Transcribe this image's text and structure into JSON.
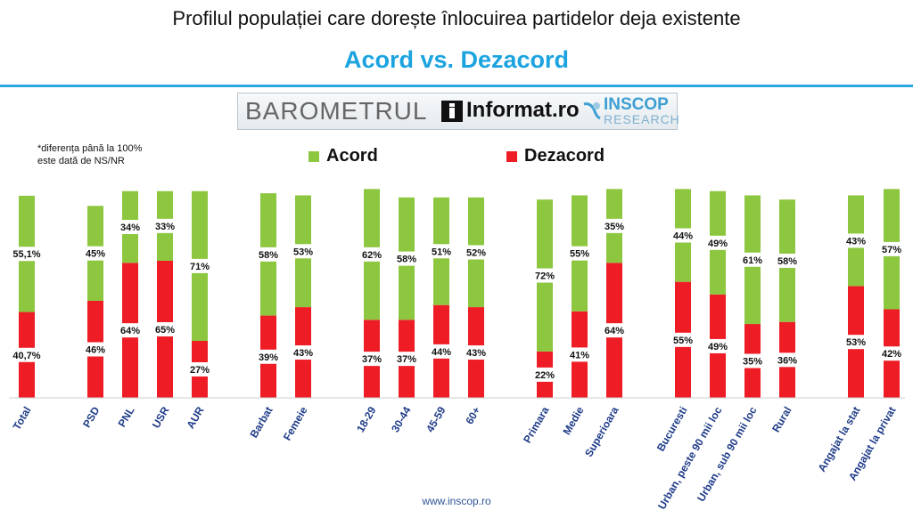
{
  "title": "Profilul populației care dorește înlocuirea partidelor deja existente",
  "subtitle": "Acord vs. Dezacord",
  "logo": {
    "barometrul": "BAROMETRUL",
    "informat": "Informat.ro",
    "inscop": "INSCOP",
    "research": "RESEARCH"
  },
  "footnote": [
    "*diferența până la 100%",
    "este dată de NS/NR"
  ],
  "footer": "www.inscop.ro",
  "colors": {
    "acord": "#8dc63f",
    "dezacord": "#ee1c25",
    "label_text": "#111111",
    "category_text": "#1f3c88"
  },
  "chart_data": {
    "type": "bar",
    "stacked": true,
    "ylim": [
      0,
      100
    ],
    "legend": "top",
    "categories": [
      "Total",
      "PSD",
      "PNL",
      "USR",
      "AUR",
      "Barbat",
      "Femeie",
      "18-29",
      "30-44",
      "45-59",
      "60+",
      "Primara",
      "Medie",
      "Superioara",
      "Bucuresti",
      "Urban, peste 90 mii loc",
      "Urban, sub 90 mii loc",
      "Rural",
      "Angajat la stat",
      "Angajat la privat"
    ],
    "series": [
      {
        "name": "Dezacord",
        "values": [
          40.7,
          46,
          64,
          65,
          27,
          39,
          43,
          37,
          37,
          44,
          43,
          22,
          41,
          64,
          55,
          49,
          35,
          36,
          53,
          42
        ],
        "labels": [
          "40,7%",
          "46%",
          "64%",
          "65%",
          "27%",
          "39%",
          "43%",
          "37%",
          "37%",
          "44%",
          "43%",
          "22%",
          "41%",
          "64%",
          "55%",
          "49%",
          "35%",
          "36%",
          "53%",
          "42%"
        ]
      },
      {
        "name": "Acord",
        "values": [
          55.1,
          45,
          34,
          33,
          71,
          58,
          53,
          62,
          58,
          51,
          52,
          72,
          55,
          35,
          44,
          49,
          61,
          58,
          43,
          57
        ],
        "labels": [
          "55,1%",
          "45%",
          "34%",
          "33%",
          "71%",
          "58%",
          "53%",
          "62%",
          "58%",
          "51%",
          "52%",
          "72%",
          "55%",
          "35%",
          "44%",
          "49%",
          "61%",
          "58%",
          "43%",
          "57%"
        ]
      }
    ]
  }
}
